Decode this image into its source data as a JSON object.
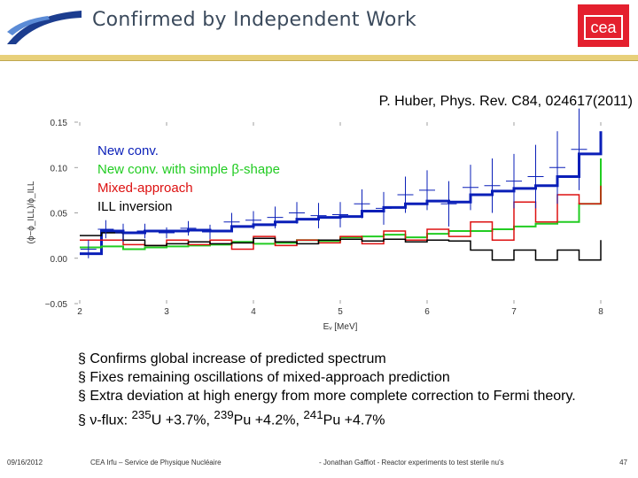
{
  "header": {
    "title": "Confirmed by Independent Work",
    "logo_right_text": "cea"
  },
  "citation": "P. Huber, Phys. Rev. C84, 024617(2011)",
  "chart_data": {
    "type": "line",
    "x_label": "Eᵥ [MeV]",
    "y_label": "(ϕ−ϕ_ILL)/ϕ_ILL",
    "xlim": [
      2,
      8
    ],
    "ylim": [
      -0.05,
      0.15
    ],
    "x_ticks": [
      "2",
      "3",
      "4",
      "5",
      "6",
      "7",
      "8"
    ],
    "y_ticks": [
      "0.15",
      "0.10",
      "0.05",
      "0.00",
      "−0.05"
    ],
    "legend_placement": "top-left",
    "series": [
      {
        "name": "New conv.",
        "color": "#0a1fb8",
        "x": [
          2.0,
          2.25,
          2.5,
          2.75,
          3.0,
          3.25,
          3.5,
          3.75,
          4.0,
          4.25,
          4.5,
          4.75,
          5.0,
          5.25,
          5.5,
          5.75,
          6.0,
          6.25,
          6.5,
          6.75,
          7.0,
          7.25,
          7.5,
          7.75,
          8.0
        ],
        "y": [
          0.005,
          0.03,
          0.028,
          0.03,
          0.03,
          0.031,
          0.03,
          0.035,
          0.037,
          0.04,
          0.043,
          0.045,
          0.046,
          0.052,
          0.056,
          0.06,
          0.063,
          0.062,
          0.07,
          0.074,
          0.077,
          0.08,
          0.09,
          0.115,
          0.14
        ]
      },
      {
        "name": "New conv. with simple β-shape",
        "color": "#22cc22",
        "x": [
          2.0,
          2.25,
          2.5,
          2.75,
          3.0,
          3.25,
          3.5,
          3.75,
          4.0,
          4.25,
          4.5,
          4.75,
          5.0,
          5.25,
          5.5,
          5.75,
          6.0,
          6.25,
          6.5,
          6.75,
          7.0,
          7.25,
          7.5,
          7.75,
          8.0
        ],
        "y": [
          0.012,
          0.013,
          0.01,
          0.012,
          0.013,
          0.014,
          0.015,
          0.018,
          0.016,
          0.017,
          0.02,
          0.019,
          0.023,
          0.024,
          0.026,
          0.023,
          0.027,
          0.03,
          0.03,
          0.032,
          0.035,
          0.038,
          0.04,
          0.06,
          0.11
        ]
      },
      {
        "name": "Mixed-approach",
        "color": "#dd1111",
        "x": [
          2.0,
          2.25,
          2.5,
          2.75,
          3.0,
          3.25,
          3.5,
          3.75,
          4.0,
          4.25,
          4.5,
          4.75,
          5.0,
          5.25,
          5.5,
          5.75,
          6.0,
          6.25,
          6.5,
          6.75,
          7.0,
          7.25,
          7.5,
          7.75,
          8.0
        ],
        "y": [
          0.02,
          0.02,
          0.015,
          0.014,
          0.02,
          0.015,
          0.02,
          0.01,
          0.024,
          0.014,
          0.02,
          0.017,
          0.024,
          0.016,
          0.03,
          0.02,
          0.032,
          0.024,
          0.04,
          0.02,
          0.062,
          0.04,
          0.07,
          0.06,
          0.08
        ]
      },
      {
        "name": "ILL inversion",
        "color": "#000000",
        "x": [
          2.0,
          2.25,
          2.5,
          2.75,
          3.0,
          3.25,
          3.5,
          3.75,
          4.0,
          4.25,
          4.5,
          4.75,
          5.0,
          5.25,
          5.5,
          5.75,
          6.0,
          6.25,
          6.5,
          6.75,
          7.0,
          7.25,
          7.5,
          7.75,
          8.0
        ],
        "y": [
          0.025,
          0.028,
          0.02,
          0.014,
          0.016,
          0.018,
          0.016,
          0.017,
          0.022,
          0.018,
          0.016,
          0.02,
          0.021,
          0.019,
          0.021,
          0.018,
          0.02,
          0.019,
          0.009,
          -0.002,
          0.009,
          -0.002,
          0.009,
          -0.002,
          0.02
        ]
      }
    ],
    "data_points": [
      {
        "x": 2.1,
        "y": 0.01,
        "err": 0.01
      },
      {
        "x": 2.3,
        "y": 0.032,
        "err": 0.01
      },
      {
        "x": 2.5,
        "y": 0.028,
        "err": 0.01
      },
      {
        "x": 2.75,
        "y": 0.03,
        "err": 0.008
      },
      {
        "x": 3.0,
        "y": 0.028,
        "err": 0.006
      },
      {
        "x": 3.25,
        "y": 0.033,
        "err": 0.008
      },
      {
        "x": 3.5,
        "y": 0.029,
        "err": 0.008
      },
      {
        "x": 3.75,
        "y": 0.04,
        "err": 0.01
      },
      {
        "x": 4.0,
        "y": 0.042,
        "err": 0.01
      },
      {
        "x": 4.25,
        "y": 0.045,
        "err": 0.012
      },
      {
        "x": 4.5,
        "y": 0.05,
        "err": 0.012
      },
      {
        "x": 4.75,
        "y": 0.047,
        "err": 0.014
      },
      {
        "x": 5.0,
        "y": 0.048,
        "err": 0.014
      },
      {
        "x": 5.25,
        "y": 0.06,
        "err": 0.016
      },
      {
        "x": 5.5,
        "y": 0.055,
        "err": 0.018
      },
      {
        "x": 5.75,
        "y": 0.07,
        "err": 0.02
      },
      {
        "x": 6.0,
        "y": 0.075,
        "err": 0.022
      },
      {
        "x": 6.25,
        "y": 0.06,
        "err": 0.025
      },
      {
        "x": 6.5,
        "y": 0.078,
        "err": 0.025
      },
      {
        "x": 6.75,
        "y": 0.08,
        "err": 0.03
      },
      {
        "x": 7.0,
        "y": 0.085,
        "err": 0.03
      },
      {
        "x": 7.25,
        "y": 0.09,
        "err": 0.035
      },
      {
        "x": 7.5,
        "y": 0.1,
        "err": 0.04
      },
      {
        "x": 7.75,
        "y": 0.12,
        "err": 0.045
      }
    ]
  },
  "bullets": [
    {
      "prefix": "§ ",
      "text": "Confirms global increase of predicted spectrum"
    },
    {
      "prefix": "§ ",
      "text": "Fixes remaining oscillations of mixed-approach prediction"
    },
    {
      "prefix": "§ ",
      "text": "Extra deviation at high energy from more complete correction to Fermi theory."
    }
  ],
  "flux_line": {
    "prefix": "§ ν-flux: ",
    "u_mass": "235",
    "u_label": "U +3.7%, ",
    "pu239_mass": "239",
    "pu239_label": "Pu +4.2%, ",
    "pu241_mass": "241",
    "pu241_label": "Pu +4.7%"
  },
  "footer": {
    "date": "09/16/2012",
    "institute": "CEA Irfu – Service de Physique Nucléaire",
    "author": "- Jonathan Gaffiot - Reactor experiments to test sterile nu's",
    "page": "47"
  },
  "colors": {
    "title": "#3b4a5c",
    "accent": "#e4202e",
    "rule": "#e8d07a"
  }
}
